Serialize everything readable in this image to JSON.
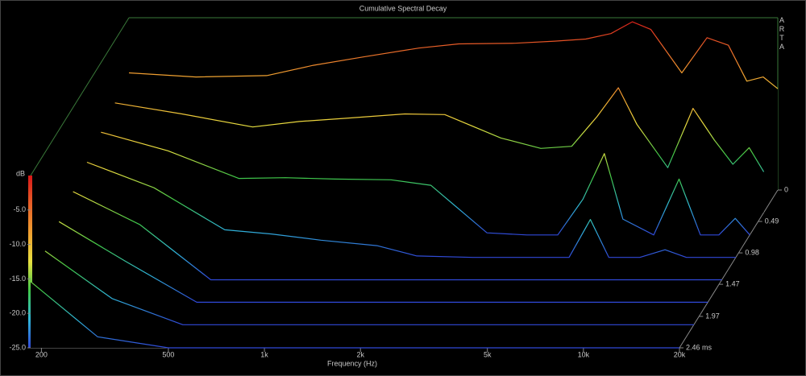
{
  "chart_data": {
    "type": "waterfall",
    "title": "Cumulative Spectral Decay",
    "xlabel": "Frequency (Hz)",
    "ylabel": "dB",
    "watermark": "ARTA",
    "x": [
      185,
      300,
      500,
      700,
      1000,
      1500,
      2000,
      3000,
      4000,
      5000,
      6000,
      7000,
      8000,
      10000,
      12000,
      14000,
      16000,
      18000,
      20000
    ],
    "xlim": [
      185,
      20000
    ],
    "xscale": "log",
    "xticks": [
      200,
      500,
      {
        "value": 1000,
        "label": "1k"
      },
      {
        "value": 2000,
        "label": "2k"
      },
      {
        "value": 5000,
        "label": "5k"
      },
      {
        "value": 10000,
        "label": "10k"
      },
      {
        "value": 20000,
        "label": "20k"
      }
    ],
    "ylim": [
      -25,
      0
    ],
    "yticks": [
      {
        "value": -5,
        "label": "-5.0"
      },
      {
        "value": -10,
        "label": "-10.0"
      },
      {
        "value": -15,
        "label": "-15.0"
      },
      {
        "value": -20,
        "label": "-20.0"
      },
      {
        "value": -25,
        "label": "-25.0"
      }
    ],
    "z": [
      0,
      0.35,
      0.7,
      1.05,
      1.4,
      1.75,
      2.1,
      2.46
    ],
    "zlim": [
      0,
      2.46
    ],
    "zticks": [
      0,
      0.49,
      0.98,
      1.47,
      1.97,
      {
        "value": 2.46,
        "label": "2.46 ms"
      }
    ],
    "colorscale": [
      "#3048d8",
      "#30b8d8",
      "#40c848",
      "#e8e040",
      "#f0a030",
      "#e86028",
      "#d81818"
    ],
    "frame_color": "#3a7a3a",
    "series": [
      {
        "values": [
          -8.0,
          -8.6,
          -8.4,
          -6.9,
          -5.7,
          -4.4,
          -3.8,
          -3.7,
          -3.4,
          -3.1,
          -2.3,
          -0.6,
          -1.7,
          -8.0,
          -2.9,
          -4.0,
          -9.2,
          -8.6,
          -10.3
        ]
      },
      {
        "values": [
          -9.1,
          -10.7,
          -12.6,
          -11.8,
          -11.3,
          -10.7,
          -10.8,
          -14.2,
          -15.7,
          -15.4,
          -11.1,
          -6.9,
          -12.2,
          -18.5,
          -9.9,
          -14.5,
          -18.0,
          -15.6,
          -19.1
        ]
      },
      {
        "values": [
          -10.1,
          -12.8,
          -16.8,
          -16.7,
          -16.9,
          -17.0,
          -17.8,
          -24.7,
          -25,
          -25,
          -19.8,
          -13.2,
          -22.7,
          -25,
          -16.9,
          -25,
          -25,
          -22.6,
          -25
        ]
      },
      {
        "values": [
          -11.2,
          -14.9,
          -21.0,
          -21.6,
          -22.5,
          -23.3,
          -24.8,
          -25,
          -25,
          -25,
          -25,
          -19.5,
          -25,
          -25,
          -23.9,
          -25,
          -25,
          -25,
          -25
        ]
      },
      {
        "values": [
          -12.2,
          -17.0,
          -25,
          -25,
          -25,
          -25,
          -25,
          -25,
          -25,
          -25,
          -25,
          -25,
          -25,
          -25,
          -25,
          -25,
          -25,
          -25,
          -25
        ]
      },
      {
        "values": [
          -13.3,
          -19.1,
          -25,
          -25,
          -25,
          -25,
          -25,
          -25,
          -25,
          -25,
          -25,
          -25,
          -25,
          -25,
          -25,
          -25,
          -25,
          -25,
          -25
        ]
      },
      {
        "values": [
          -14.3,
          -21.2,
          -25,
          -25,
          -25,
          -25,
          -25,
          -25,
          -25,
          -25,
          -25,
          -25,
          -25,
          -25,
          -25,
          -25,
          -25,
          -25,
          -25
        ]
      },
      {
        "values": [
          -15.4,
          -23.4,
          -25,
          -25,
          -25,
          -25,
          -25,
          -25,
          -25,
          -25,
          -25,
          -25,
          -25,
          -25,
          -25,
          -25,
          -25,
          -25,
          -25
        ]
      }
    ]
  }
}
